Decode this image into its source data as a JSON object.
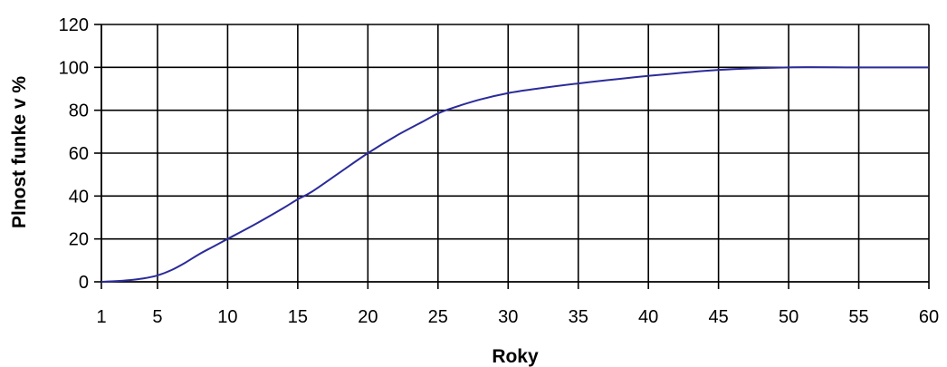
{
  "chart_data": {
    "type": "line",
    "title": "",
    "xlabel": "Roky",
    "ylabel": "Plnost funke v %",
    "xlim": [
      1,
      60
    ],
    "ylim": [
      0,
      120
    ],
    "xticks": [
      1,
      5,
      10,
      15,
      20,
      25,
      30,
      35,
      40,
      45,
      50,
      55,
      60
    ],
    "yticks": [
      0,
      20,
      40,
      60,
      80,
      100,
      120
    ],
    "grid": true,
    "legend": "none",
    "series": [
      {
        "color": "#2b2b9a",
        "x": [
          1,
          2,
          3,
          4,
          5,
          6,
          7,
          8,
          9,
          10,
          12,
          14,
          15,
          16,
          18,
          20,
          22,
          24,
          25,
          26,
          28,
          30,
          32,
          35,
          40,
          45,
          50,
          55,
          60
        ],
        "y": [
          0,
          0.3,
          0.8,
          1.6,
          3,
          5.5,
          9,
          13,
          16.5,
          20,
          27,
          34.5,
          38.5,
          42,
          51,
          60,
          68,
          75,
          78.5,
          81,
          85,
          88,
          90,
          92.5,
          96,
          98.8,
          100,
          100,
          100
        ]
      }
    ]
  }
}
